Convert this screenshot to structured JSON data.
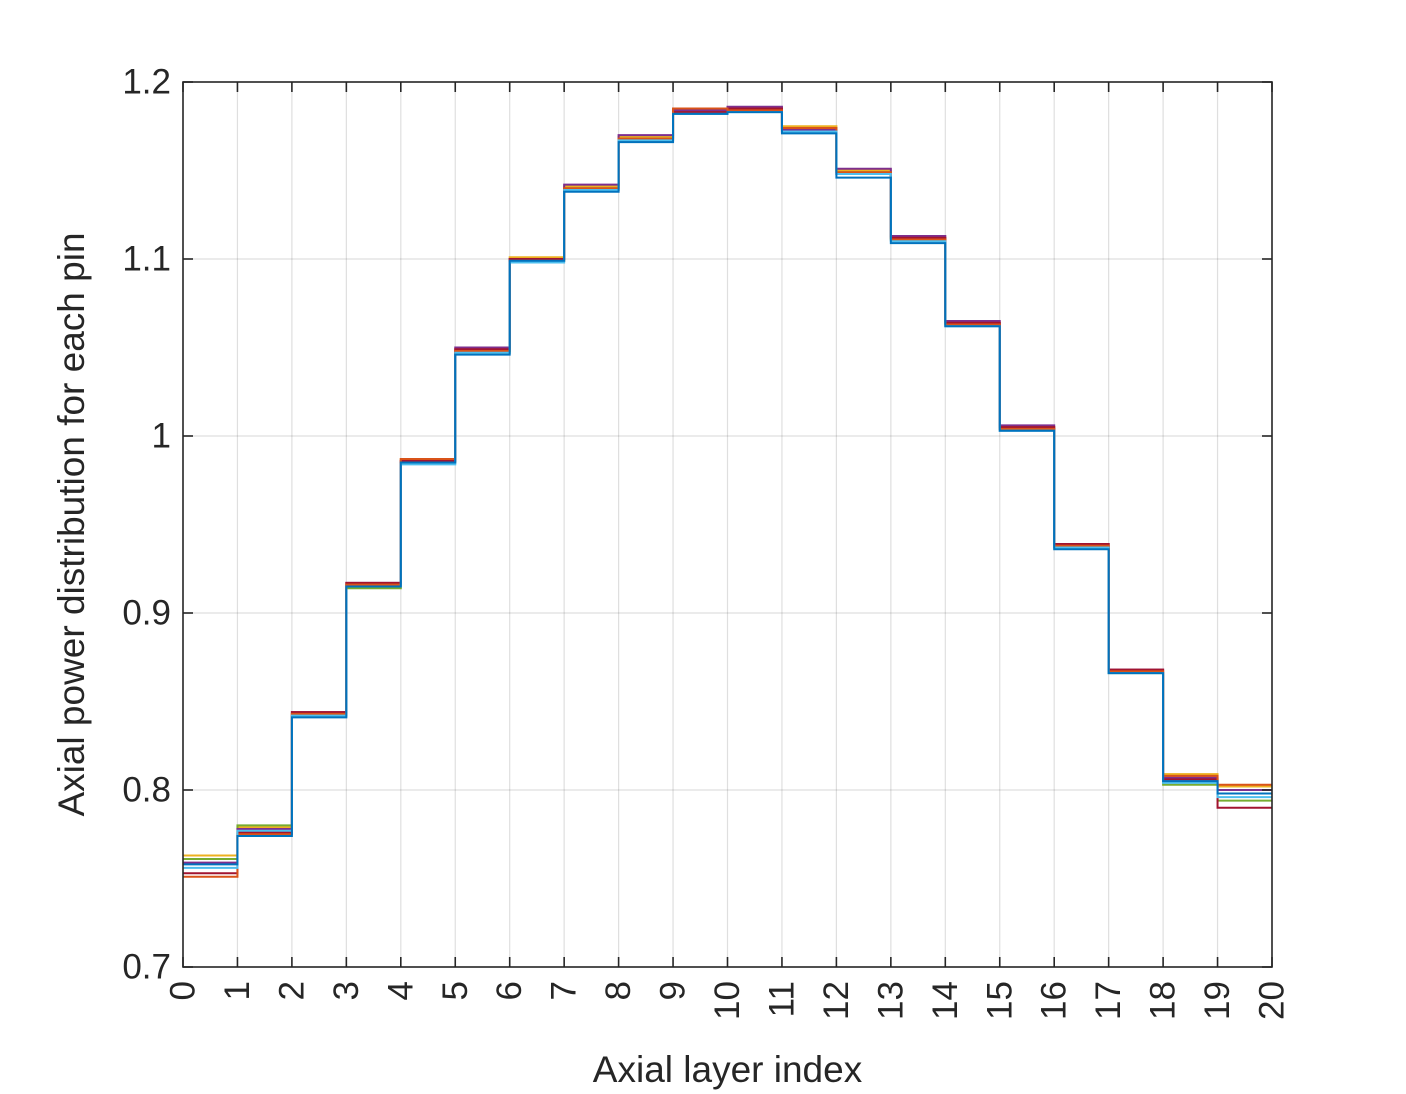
{
  "chart_data": {
    "type": "line",
    "style": "stairs",
    "title": "",
    "xlabel": "Axial layer index",
    "ylabel": "Axial power distribution for each pin",
    "xlim": [
      0,
      20
    ],
    "ylim": [
      0.7,
      1.2
    ],
    "x_ticks": [
      "0",
      "1",
      "2",
      "3",
      "4",
      "5",
      "6",
      "7",
      "8",
      "9",
      "10",
      "11",
      "12",
      "13",
      "14",
      "15",
      "16",
      "17",
      "18",
      "19",
      "20"
    ],
    "y_ticks": [
      "0.7",
      "0.8",
      "0.9",
      "1",
      "1.1",
      "1.2"
    ],
    "y_tick_values": [
      0.7,
      0.8,
      0.9,
      1.0,
      1.1,
      1.2
    ],
    "grid": true,
    "x_edges": [
      0,
      1,
      2,
      3,
      4,
      5,
      6,
      7,
      8,
      9,
      10,
      11,
      12,
      13,
      14,
      15,
      16,
      17,
      18,
      19,
      20
    ],
    "series": [
      {
        "color": "#EDB120",
        "values": [
          0.763,
          0.779,
          0.843,
          0.916,
          0.987,
          1.048,
          1.101,
          1.141,
          1.169,
          1.185,
          1.185,
          1.175,
          1.15,
          1.112,
          1.064,
          1.005,
          0.938,
          0.867,
          0.809,
          0.802
        ]
      },
      {
        "color": "#77AC30",
        "values": [
          0.761,
          0.78,
          0.842,
          0.914,
          0.985,
          1.047,
          1.099,
          1.14,
          1.168,
          1.183,
          1.184,
          1.174,
          1.149,
          1.111,
          1.063,
          1.004,
          0.937,
          0.866,
          0.803,
          0.794
        ]
      },
      {
        "color": "#7E2F8E",
        "values": [
          0.759,
          0.778,
          0.844,
          0.917,
          0.986,
          1.05,
          1.1,
          1.142,
          1.17,
          1.184,
          1.186,
          1.173,
          1.151,
          1.113,
          1.065,
          1.006,
          0.939,
          0.868,
          0.807,
          0.8
        ]
      },
      {
        "color": "#A2142F",
        "values": [
          0.753,
          0.776,
          0.844,
          0.917,
          0.986,
          1.049,
          1.1,
          1.139,
          1.167,
          1.183,
          1.185,
          1.172,
          1.148,
          1.112,
          1.064,
          1.005,
          0.939,
          0.868,
          0.806,
          0.79
        ]
      },
      {
        "color": "#D95319",
        "values": [
          0.751,
          0.775,
          0.843,
          0.916,
          0.987,
          1.048,
          1.099,
          1.14,
          1.168,
          1.185,
          1.184,
          1.174,
          1.149,
          1.111,
          1.063,
          1.004,
          0.938,
          0.867,
          0.808,
          0.803
        ]
      },
      {
        "color": "#4DBEEE",
        "values": [
          0.756,
          0.777,
          0.842,
          0.915,
          0.984,
          1.047,
          1.098,
          1.139,
          1.167,
          1.182,
          1.183,
          1.172,
          1.148,
          1.11,
          1.062,
          1.003,
          0.937,
          0.866,
          0.804,
          0.796
        ]
      },
      {
        "color": "#0072BD",
        "values": [
          0.758,
          0.774,
          0.841,
          0.915,
          0.985,
          1.046,
          1.099,
          1.138,
          1.166,
          1.182,
          1.183,
          1.171,
          1.146,
          1.109,
          1.062,
          1.003,
          0.936,
          0.866,
          0.805,
          0.798
        ]
      }
    ]
  }
}
